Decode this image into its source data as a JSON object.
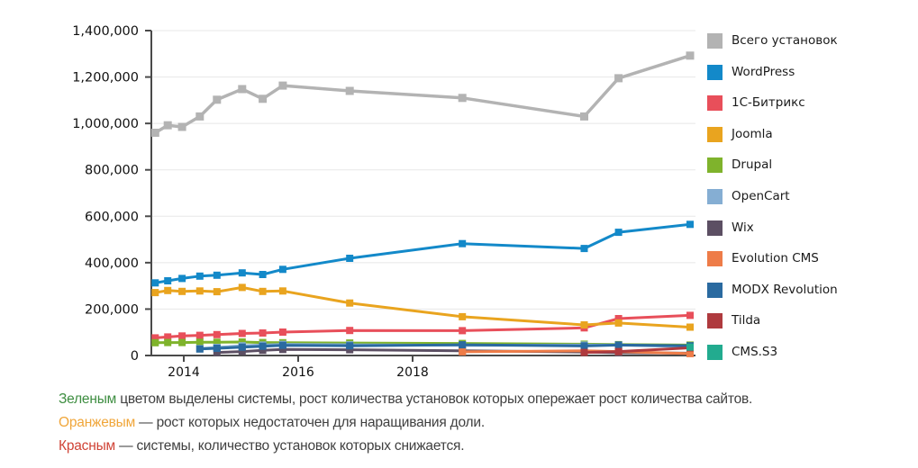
{
  "chart_data": {
    "type": "line",
    "title": "",
    "xlabel": "",
    "ylabel": "",
    "grid": true,
    "legend_position": "right",
    "ylim": [
      0,
      1400000
    ],
    "y_tick_step": 200000,
    "y_tick_labels": [
      "0",
      "200,000",
      "400,000",
      "600,000",
      "800,000",
      "1,000,000",
      "1,200,000",
      "1,400,000"
    ],
    "x_ticks": [
      {
        "label": "2014",
        "year": 2014
      },
      {
        "label": "2016",
        "year": 2016
      },
      {
        "label": "2018",
        "year": 2018
      }
    ],
    "x": [
      2013.5,
      2013.72,
      2013.97,
      2014.28,
      2014.58,
      2015.02,
      2015.38,
      2015.73,
      2016.9,
      2018.87,
      2021.0,
      2021.6,
      2022.85
    ],
    "series": [
      {
        "id": "total",
        "name": "Всего установок",
        "color": "#b3b3b3",
        "values": [
          960000,
          992000,
          985000,
          1030000,
          1102000,
          1148000,
          1106000,
          1163000,
          1140000,
          1110000,
          1030000,
          1195000,
          1292000
        ]
      },
      {
        "id": "wordpress",
        "name": "WordPress",
        "color": "#1389c9",
        "values": [
          313000,
          322000,
          332000,
          342000,
          346000,
          356000,
          349000,
          371000,
          419000,
          482000,
          461000,
          531000,
          565000
        ]
      },
      {
        "id": "bitrix",
        "name": "1С-Битрикс",
        "color": "#e84f5a",
        "values": [
          76000,
          80000,
          84000,
          87000,
          90000,
          95000,
          97000,
          101000,
          108000,
          107000,
          119000,
          159000,
          173000
        ]
      },
      {
        "id": "joomla",
        "name": "Joomla",
        "color": "#e9a41f",
        "values": [
          271000,
          280000,
          276000,
          278000,
          275000,
          293000,
          276000,
          278000,
          226000,
          167000,
          132000,
          140000,
          122000
        ]
      },
      {
        "id": "drupal",
        "name": "Drupal",
        "color": "#7fb32c",
        "values": [
          55000,
          56000,
          56000,
          57000,
          57000,
          58000,
          56000,
          55000,
          54000,
          52000,
          49000,
          47000,
          45000
        ]
      },
      {
        "id": "opencart",
        "name": "OpenCart",
        "color": "#85aed3",
        "values": [
          null,
          null,
          null,
          30000,
          35000,
          42000,
          45000,
          48000,
          46000,
          44000,
          45000,
          45000,
          38000
        ]
      },
      {
        "id": "wix",
        "name": "Wix",
        "color": "#5c4f63",
        "values": [
          null,
          null,
          null,
          null,
          13000,
          17000,
          22000,
          26000,
          25000,
          20000,
          15000,
          12000,
          10000
        ]
      },
      {
        "id": "evolution-cms",
        "name": "Evolution CMS",
        "color": "#ee7c48",
        "values": [
          null,
          null,
          null,
          null,
          null,
          null,
          null,
          null,
          null,
          16000,
          20000,
          17000,
          8000
        ]
      },
      {
        "id": "modx-revolution",
        "name": "MODX Revolution",
        "color": "#2a6aa0",
        "values": [
          null,
          null,
          null,
          28000,
          31000,
          36000,
          40000,
          44000,
          42000,
          46000,
          41000,
          45000,
          42000
        ]
      },
      {
        "id": "tilda",
        "name": "Tilda",
        "color": "#af3a3e",
        "values": [
          null,
          null,
          null,
          null,
          null,
          null,
          null,
          null,
          null,
          null,
          13000,
          17000,
          33000
        ]
      },
      {
        "id": "cms-s3",
        "name": "CMS.S3",
        "color": "#22ab8f",
        "values": [
          null,
          null,
          null,
          null,
          null,
          null,
          null,
          null,
          null,
          null,
          null,
          null,
          36000
        ]
      }
    ]
  },
  "footer": {
    "lines": [
      {
        "highlight": "Зеленым",
        "color": "#3e8e41",
        "text": " цветом выделены системы, рост количества установок которых опережает рост количества сайтов."
      },
      {
        "highlight": "Оранжевым",
        "color": "#f0a63a",
        "text": " — рост которых недостаточен для наращивания доли."
      },
      {
        "highlight": "Красным",
        "color": "#d04336",
        "text": " — системы, количество установок которых снижается."
      }
    ]
  }
}
